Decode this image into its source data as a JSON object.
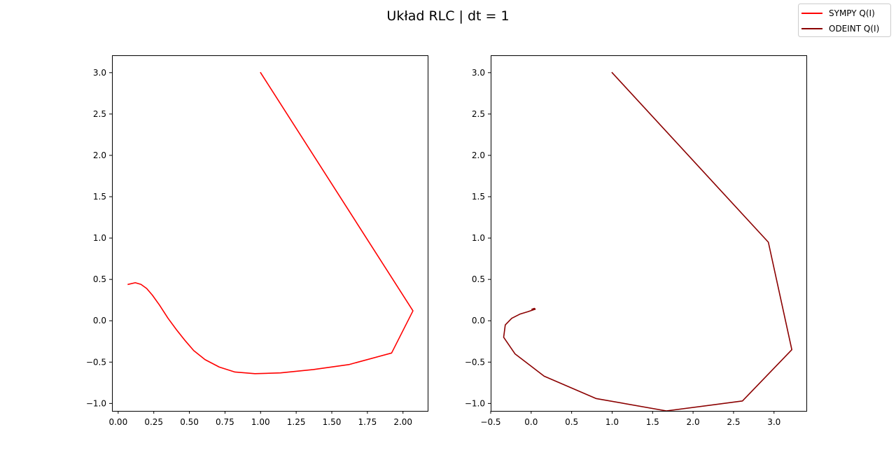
{
  "figure": {
    "suptitle": "Układ RLC | dt = 1"
  },
  "legend": {
    "placement": "top-right",
    "entries": [
      {
        "label": "SYMPY Q(I)",
        "color": "#ff0000"
      },
      {
        "label": "ODEINT Q(I)",
        "color": "#8b0000"
      }
    ]
  },
  "chart_data": [
    {
      "type": "line",
      "title": "",
      "xlabel": "",
      "ylabel": "",
      "xlim": [
        -0.0435,
        2.1735
      ],
      "ylim": [
        -1.09,
        3.21
      ],
      "xticks": [
        0.0,
        0.25,
        0.5,
        0.75,
        1.0,
        1.25,
        1.5,
        1.75,
        2.0
      ],
      "xtick_labels": [
        "0.00",
        "0.25",
        "0.50",
        "0.75",
        "1.00",
        "1.25",
        "1.50",
        "1.75",
        "2.00"
      ],
      "yticks": [
        -1.0,
        -0.5,
        0.0,
        0.5,
        1.0,
        1.5,
        2.0,
        2.5,
        3.0
      ],
      "ytick_labels": [
        "−1.0",
        "−0.5",
        "0.0",
        "0.5",
        "1.0",
        "1.5",
        "2.0",
        "2.5",
        "3.0"
      ],
      "grid": false,
      "series": [
        {
          "name": "SYMPY Q(I)",
          "color": "#ff0000",
          "x": [
            1.0,
            2.07,
            1.92,
            1.62,
            1.37,
            1.14,
            0.96,
            0.82,
            0.71,
            0.61,
            0.53,
            0.47,
            0.41,
            0.35,
            0.29,
            0.24,
            0.2,
            0.16,
            0.12,
            0.07
          ],
          "y": [
            3.0,
            0.12,
            -0.39,
            -0.53,
            -0.59,
            -0.63,
            -0.64,
            -0.62,
            -0.56,
            -0.47,
            -0.36,
            -0.24,
            -0.11,
            0.03,
            0.19,
            0.31,
            0.39,
            0.44,
            0.46,
            0.44
          ]
        }
      ]
    },
    {
      "type": "line",
      "title": "",
      "xlabel": "",
      "ylabel": "",
      "xlim": [
        -0.5,
        3.4
      ],
      "ylim": [
        -1.09,
        3.21
      ],
      "xticks": [
        -0.5,
        0.0,
        0.5,
        1.0,
        1.5,
        2.0,
        2.5,
        3.0
      ],
      "xtick_labels": [
        "−0.5",
        "0.0",
        "0.5",
        "1.0",
        "1.5",
        "2.0",
        "2.5",
        "3.0"
      ],
      "yticks": [
        -1.0,
        -0.5,
        0.0,
        0.5,
        1.0,
        1.5,
        2.0,
        2.5,
        3.0
      ],
      "ytick_labels": [
        "−1.0",
        "−0.5",
        "0.0",
        "0.5",
        "1.0",
        "1.5",
        "2.0",
        "2.5",
        "3.0"
      ],
      "grid": false,
      "series": [
        {
          "name": "ODEINT Q(I)",
          "color": "#8b0000",
          "x": [
            1.0,
            2.93,
            3.22,
            2.61,
            1.67,
            0.8,
            0.16,
            -0.2,
            -0.34,
            -0.32,
            -0.24,
            -0.14,
            -0.04,
            0.02,
            0.05,
            0.04,
            0.01
          ],
          "y": [
            3.0,
            0.95,
            -0.35,
            -0.97,
            -1.09,
            -0.94,
            -0.67,
            -0.4,
            -0.2,
            -0.05,
            0.03,
            0.08,
            0.11,
            0.13,
            0.14,
            0.15,
            0.14
          ]
        }
      ]
    }
  ]
}
